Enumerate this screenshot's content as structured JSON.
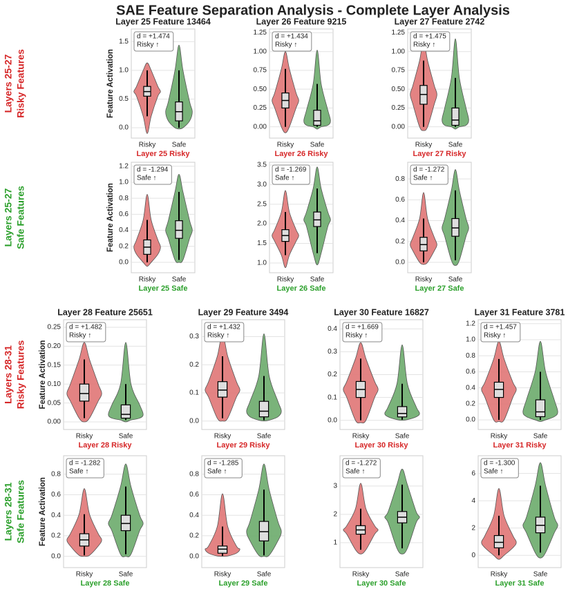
{
  "title": "SAE Feature Separation Analysis - Complete Layer Analysis",
  "row_labels": [
    {
      "lines": [
        "Layers 25-27",
        "Risky Features"
      ],
      "color": "#d62728"
    },
    {
      "lines": [
        "Layers 25-27",
        "Safe Features"
      ],
      "color": "#2ca02c"
    },
    {
      "lines": [
        "Layers 28-31",
        "Risky Features"
      ],
      "color": "#d62728"
    },
    {
      "lines": [
        "Layers 28-31",
        "Safe Features"
      ],
      "color": "#2ca02c"
    }
  ],
  "chart_data": [
    {
      "type": "violin",
      "title": "Layer 25 Feature 13464",
      "ylabel": "Feature Activation",
      "xlabel": "Layer 25 Risky",
      "xlabel_color": "#d62728",
      "annotation": [
        "d = +1.474",
        "Risky ↑"
      ],
      "categories": [
        "Risky",
        "Safe"
      ],
      "grid": true,
      "ylim": [
        -0.18,
        1.72
      ],
      "yticks": [
        {
          "value": 0,
          "label": "0.0"
        },
        0.5,
        {
          "value": 1,
          "label": "1.0"
        },
        1.5
      ],
      "violins": [
        {
          "color": "#e07575",
          "min": -0.1,
          "whislo": 0.2,
          "q1": 0.55,
          "median": 0.63,
          "q3": 0.72,
          "whishi": 1.0,
          "max": 1.13
        },
        {
          "color": "#6bab6b",
          "min": -0.02,
          "whislo": 0.0,
          "q1": 0.12,
          "median": 0.28,
          "q3": 0.45,
          "whishi": 1.0,
          "max": 1.44
        }
      ]
    },
    {
      "type": "violin",
      "title": "Layer 26 Feature 9215",
      "xlabel": "Layer 26 Risky",
      "xlabel_color": "#d62728",
      "annotation": [
        "d = +1.434",
        "Risky ↑"
      ],
      "categories": [
        "Risky",
        "Safe"
      ],
      "grid": true,
      "ylim": [
        -0.15,
        1.3
      ],
      "yticks": [
        {
          "value": 0,
          "label": "0.00"
        },
        0.25,
        {
          "value": 0.5,
          "label": "0.50"
        },
        0.75,
        {
          "value": 1,
          "label": "1.00"
        },
        1.25
      ],
      "violins": [
        {
          "color": "#e07575",
          "min": -0.08,
          "whislo": 0.0,
          "q1": 0.25,
          "median": 0.35,
          "q3": 0.45,
          "whishi": 0.77,
          "max": 1.0
        },
        {
          "color": "#6bab6b",
          "min": -0.03,
          "whislo": 0.0,
          "q1": 0.02,
          "median": 0.08,
          "q3": 0.22,
          "whishi": 0.57,
          "max": 1.02
        }
      ]
    },
    {
      "type": "violin",
      "title": "Layer 27 Feature 2742",
      "xlabel": "Layer 27 Risky",
      "xlabel_color": "#d62728",
      "annotation": [
        "d = +1.475",
        "Risky ↑"
      ],
      "categories": [
        "Risky",
        "Safe"
      ],
      "grid": true,
      "ylim": [
        -0.15,
        1.3
      ],
      "yticks": [
        {
          "value": 0,
          "label": "0.00"
        },
        0.25,
        {
          "value": 0.5,
          "label": "0.50"
        },
        0.75,
        {
          "value": 1,
          "label": "1.00"
        },
        1.25
      ],
      "violins": [
        {
          "color": "#e07575",
          "min": -0.05,
          "whislo": 0.0,
          "q1": 0.3,
          "median": 0.43,
          "q3": 0.55,
          "whishi": 0.88,
          "max": 1.15
        },
        {
          "color": "#6bab6b",
          "min": -0.03,
          "whislo": 0.0,
          "q1": 0.02,
          "median": 0.09,
          "q3": 0.25,
          "whishi": 0.65,
          "max": 1.17
        }
      ]
    },
    {
      "type": "violin",
      "ylabel": "Feature Activation",
      "xlabel": "Layer 25 Safe",
      "xlabel_color": "#2ca02c",
      "annotation": [
        "d = -1.294",
        "Safe ↑"
      ],
      "categories": [
        "Risky",
        "Safe"
      ],
      "grid": true,
      "ylim": [
        -0.13,
        1.25
      ],
      "yticks": [
        {
          "value": 0,
          "label": "0.0"
        },
        0.2,
        0.4,
        0.6,
        0.8,
        {
          "value": 1,
          "label": "1.0"
        },
        1.2
      ],
      "violins": [
        {
          "color": "#e07575",
          "min": -0.05,
          "whislo": 0.0,
          "q1": 0.1,
          "median": 0.19,
          "q3": 0.28,
          "whishi": 0.53,
          "max": 0.85
        },
        {
          "color": "#6bab6b",
          "min": 0.0,
          "whislo": 0.03,
          "q1": 0.3,
          "median": 0.4,
          "q3": 0.52,
          "whishi": 0.88,
          "max": 1.1
        }
      ]
    },
    {
      "type": "violin",
      "xlabel": "Layer 26 Safe",
      "xlabel_color": "#2ca02c",
      "annotation": [
        "d = -1.269",
        "Safe ↑"
      ],
      "categories": [
        "Risky",
        "Safe"
      ],
      "grid": true,
      "ylim": [
        0.75,
        3.57
      ],
      "yticks": [
        {
          "value": 1,
          "label": "1.0"
        },
        1.5,
        {
          "value": 2,
          "label": "2.0"
        },
        2.5,
        {
          "value": 3,
          "label": "3.0"
        },
        3.5
      ],
      "violins": [
        {
          "color": "#e07575",
          "min": 0.88,
          "whislo": 1.2,
          "q1": 1.55,
          "median": 1.7,
          "q3": 1.85,
          "whishi": 2.3,
          "max": 2.85
        },
        {
          "color": "#6bab6b",
          "min": 0.95,
          "whislo": 1.25,
          "q1": 1.93,
          "median": 2.1,
          "q3": 2.3,
          "whishi": 2.9,
          "max": 3.45
        }
      ]
    },
    {
      "type": "violin",
      "xlabel": "Layer 27 Safe",
      "xlabel_color": "#2ca02c",
      "annotation": [
        "d = -1.272",
        "Safe ↑"
      ],
      "categories": [
        "Risky",
        "Safe"
      ],
      "grid": true,
      "ylim": [
        -0.1,
        0.96
      ],
      "yticks": [
        {
          "value": 0,
          "label": "0.0"
        },
        0.2,
        0.4,
        0.6,
        0.8
      ],
      "violins": [
        {
          "color": "#e07575",
          "min": -0.02,
          "whislo": 0.0,
          "q1": 0.11,
          "median": 0.17,
          "q3": 0.24,
          "whishi": 0.42,
          "max": 0.67
        },
        {
          "color": "#6bab6b",
          "min": -0.03,
          "whislo": 0.02,
          "q1": 0.25,
          "median": 0.33,
          "q3": 0.42,
          "whishi": 0.69,
          "max": 0.89
        }
      ]
    },
    {
      "type": "violin",
      "title": "Layer 28 Feature 25651",
      "ylabel": "Feature Activation",
      "xlabel": "Layer 28 Risky",
      "xlabel_color": "#d62728",
      "annotation": [
        "d = +1.482",
        "Risky ↑"
      ],
      "categories": [
        "Risky",
        "Safe"
      ],
      "grid": true,
      "ylim": [
        -0.02,
        0.27
      ],
      "yticks": [
        {
          "value": 0,
          "label": "0.00"
        },
        0.05,
        {
          "value": 0.1,
          "label": "0.10"
        },
        0.15,
        {
          "value": 0.2,
          "label": "0.20"
        },
        0.25
      ],
      "violins": [
        {
          "color": "#e07575",
          "min": 0.0,
          "whislo": 0.01,
          "q1": 0.055,
          "median": 0.075,
          "q3": 0.1,
          "whishi": 0.165,
          "max": 0.21
        },
        {
          "color": "#6bab6b",
          "min": 0.0,
          "whislo": 0.005,
          "q1": 0.01,
          "median": 0.02,
          "q3": 0.045,
          "whishi": 0.1,
          "max": 0.21
        }
      ]
    },
    {
      "type": "violin",
      "title": "Layer 29 Feature 3494",
      "xlabel": "Layer 29 Risky",
      "xlabel_color": "#d62728",
      "annotation": [
        "d = +1.432",
        "Risky ↑"
      ],
      "categories": [
        "Risky",
        "Safe"
      ],
      "grid": true,
      "ylim": [
        -0.03,
        0.36
      ],
      "yticks": [
        {
          "value": 0,
          "label": "0.0"
        },
        0.1,
        0.2,
        0.3
      ],
      "violins": [
        {
          "color": "#e07575",
          "min": 0.0,
          "whislo": 0.01,
          "q1": 0.085,
          "median": 0.11,
          "q3": 0.14,
          "whishi": 0.23,
          "max": 0.31
        },
        {
          "color": "#6bab6b",
          "min": 0.0,
          "whislo": 0.003,
          "q1": 0.015,
          "median": 0.035,
          "q3": 0.07,
          "whishi": 0.16,
          "max": 0.31
        }
      ]
    },
    {
      "type": "violin",
      "title": "Layer 30 Feature 16827",
      "xlabel": "Layer 30 Risky",
      "xlabel_color": "#d62728",
      "annotation": [
        "d = +1.669",
        "Risky ↑"
      ],
      "categories": [
        "Risky",
        "Safe"
      ],
      "grid": true,
      "ylim": [
        -0.04,
        0.44
      ],
      "yticks": [
        {
          "value": 0,
          "label": "0.0"
        },
        0.1,
        0.2,
        0.3,
        0.4
      ],
      "violins": [
        {
          "color": "#e07575",
          "min": -0.01,
          "whislo": 0.0,
          "q1": 0.1,
          "median": 0.135,
          "q3": 0.17,
          "whishi": 0.27,
          "max": 0.34
        },
        {
          "color": "#6bab6b",
          "min": 0.0,
          "whislo": 0.003,
          "q1": 0.015,
          "median": 0.03,
          "q3": 0.06,
          "whishi": 0.16,
          "max": 0.33
        }
      ]
    },
    {
      "type": "violin",
      "title": "Layer 31 Feature 3781",
      "xlabel": "Layer 31 Risky",
      "xlabel_color": "#d62728",
      "annotation": [
        "d = +1.457",
        "Risky ↑"
      ],
      "categories": [
        "Risky",
        "Safe"
      ],
      "grid": true,
      "ylim": [
        -0.12,
        1.25
      ],
      "yticks": [
        {
          "value": 0,
          "label": "0.0"
        },
        0.2,
        0.4,
        0.6,
        0.8,
        {
          "value": 1,
          "label": "1.0"
        },
        1.2
      ],
      "violins": [
        {
          "color": "#e07575",
          "min": -0.02,
          "whislo": 0.0,
          "q1": 0.28,
          "median": 0.38,
          "q3": 0.47,
          "whishi": 0.76,
          "max": 0.98
        },
        {
          "color": "#6bab6b",
          "min": -0.02,
          "whislo": 0.0,
          "q1": 0.04,
          "median": 0.1,
          "q3": 0.25,
          "whishi": 0.6,
          "max": 0.98
        }
      ]
    },
    {
      "type": "violin",
      "ylabel": "Feature Activation",
      "xlabel": "Layer 28 Safe",
      "xlabel_color": "#2ca02c",
      "annotation": [
        "d = -1.282",
        "Safe ↑"
      ],
      "categories": [
        "Risky",
        "Safe"
      ],
      "grid": true,
      "ylim": [
        -0.11,
        0.98
      ],
      "yticks": [
        {
          "value": 0,
          "label": "0.0"
        },
        0.2,
        0.4,
        0.6,
        0.8
      ],
      "violins": [
        {
          "color": "#e07575",
          "min": 0.0,
          "whislo": 0.01,
          "q1": 0.1,
          "median": 0.16,
          "q3": 0.22,
          "whishi": 0.41,
          "max": 0.66
        },
        {
          "color": "#6bab6b",
          "min": 0.0,
          "whislo": 0.02,
          "q1": 0.25,
          "median": 0.32,
          "q3": 0.4,
          "whishi": 0.68,
          "max": 0.9
        }
      ]
    },
    {
      "type": "violin",
      "xlabel": "Layer 29 Safe",
      "xlabel_color": "#2ca02c",
      "annotation": [
        "d = -1.285",
        "Safe ↑"
      ],
      "categories": [
        "Risky",
        "Safe"
      ],
      "grid": true,
      "ylim": [
        -0.11,
        0.98
      ],
      "yticks": [
        {
          "value": 0,
          "label": "0.0"
        },
        0.2,
        0.4,
        0.6,
        0.8
      ],
      "violins": [
        {
          "color": "#e07575",
          "min": 0.0,
          "whislo": 0.003,
          "q1": 0.03,
          "median": 0.07,
          "q3": 0.1,
          "whishi": 0.29,
          "max": 0.61
        },
        {
          "color": "#6bab6b",
          "min": 0.0,
          "whislo": 0.01,
          "q1": 0.15,
          "median": 0.24,
          "q3": 0.34,
          "whishi": 0.65,
          "max": 0.9
        }
      ]
    },
    {
      "type": "violin",
      "xlabel": "Layer 30 Safe",
      "xlabel_color": "#2ca02c",
      "annotation": [
        "d = -1.272",
        "Safe ↑"
      ],
      "categories": [
        "Risky",
        "Safe"
      ],
      "grid": true,
      "ylim": [
        0.12,
        4.07
      ],
      "yticks": [
        1,
        2,
        3
      ],
      "violins": [
        {
          "color": "#e07575",
          "min": 0.6,
          "whislo": 0.75,
          "q1": 1.3,
          "median": 1.45,
          "q3": 1.6,
          "whishi": 2.2,
          "max": 3.1
        },
        {
          "color": "#6bab6b",
          "min": 0.6,
          "whislo": 0.8,
          "q1": 1.7,
          "median": 1.9,
          "q3": 2.1,
          "whishi": 3.05,
          "max": 3.6
        }
      ]
    },
    {
      "type": "violin",
      "xlabel": "Layer 31 Safe",
      "xlabel_color": "#2ca02c",
      "annotation": [
        "d = -1.300",
        "Safe ↑"
      ],
      "categories": [
        "Risky",
        "Safe"
      ],
      "grid": true,
      "ylim": [
        -0.9,
        7.3
      ],
      "yticks": [
        0,
        2,
        4,
        6
      ],
      "violins": [
        {
          "color": "#e07575",
          "min": -0.3,
          "whislo": 0.0,
          "q1": 0.55,
          "median": 0.95,
          "q3": 1.45,
          "whishi": 2.9,
          "max": 4.9
        },
        {
          "color": "#6bab6b",
          "min": -0.2,
          "whislo": 0.2,
          "q1": 1.65,
          "median": 2.2,
          "q3": 2.8,
          "whishi": 5.1,
          "max": 6.8
        }
      ]
    }
  ]
}
